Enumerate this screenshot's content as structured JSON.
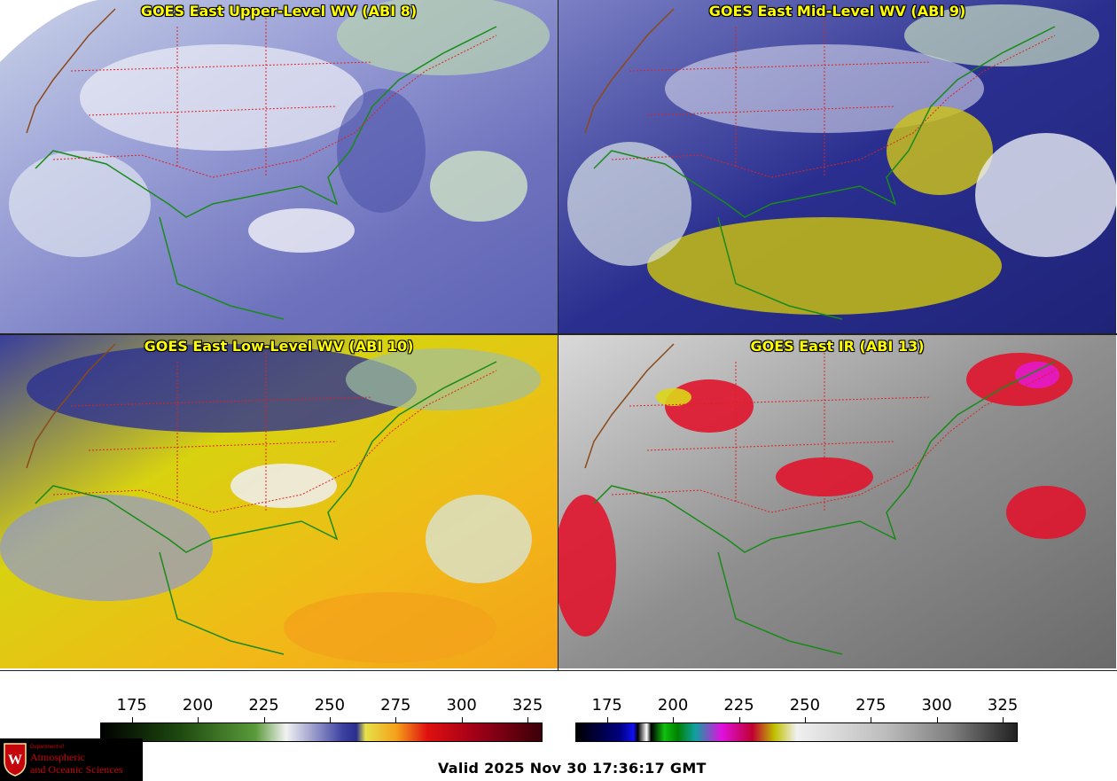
{
  "panels": [
    {
      "title": "GOES East Upper-Level WV (ABI 8)",
      "scheme": "wv_upper"
    },
    {
      "title": "GOES East Mid-Level WV (ABI 9)",
      "scheme": "wv_mid"
    },
    {
      "title": "GOES East Low-Level WV (ABI 10)",
      "scheme": "wv_low"
    },
    {
      "title": "GOES East IR (ABI 13)",
      "scheme": "ir"
    }
  ],
  "colorbars": {
    "wv": {
      "ticks": [
        "175",
        "200",
        "225",
        "250",
        "275",
        "300",
        "325"
      ],
      "range": [
        163,
        330
      ]
    },
    "ir": {
      "ticks": [
        "175",
        "200",
        "225",
        "250",
        "275",
        "300",
        "325"
      ],
      "range": [
        163,
        330
      ]
    }
  },
  "colors": {
    "state_lines": "#e02020",
    "coast_lines": "#1a8a1a",
    "border_lines": "#8b4a1a",
    "title_text": "#ffff00"
  },
  "valid_time": "Valid 2025 Nov 30 17:36:17 GMT",
  "logo": {
    "line1": "Department of",
    "line2": "Atmospheric",
    "line3": "and Oceanic Sciences",
    "icon": "uw-crest-icon"
  }
}
